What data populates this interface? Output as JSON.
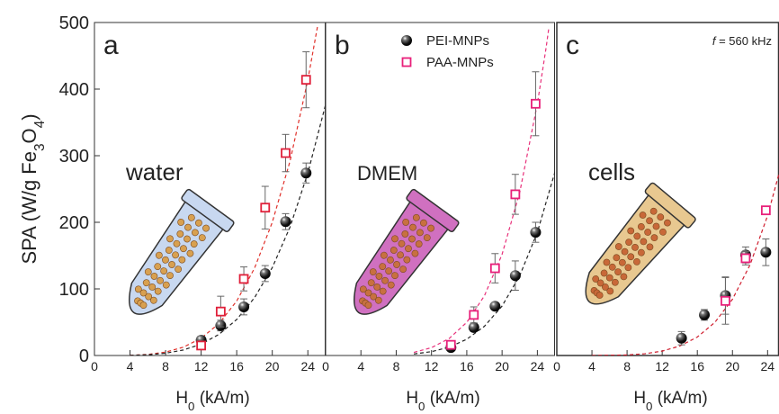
{
  "chart_data": [
    {
      "type": "scatter",
      "panel_label": "a",
      "annotation": "water",
      "ylabel_parts": [
        "SPA (W/g Fe",
        "3",
        "O",
        "4",
        ")"
      ],
      "xlabel_parts": [
        "H",
        "0",
        " (kA/m)"
      ],
      "xlim": [
        0,
        26
      ],
      "ylim": [
        0,
        500
      ],
      "xticks": [
        0,
        4,
        8,
        12,
        16,
        20,
        24
      ],
      "yticks": [
        0,
        100,
        200,
        300,
        400,
        500
      ],
      "series": [
        {
          "marker": "sphere",
          "color": "#111111",
          "x": [
            12,
            14.2,
            16.8,
            19.2,
            21.5,
            23.8
          ],
          "values": [
            23,
            45,
            73,
            123,
            201,
            274
          ],
          "errors": [
            6,
            8,
            12,
            12,
            12,
            15
          ]
        },
        {
          "marker": "square",
          "color": "#e0203a",
          "x": [
            12,
            14.2,
            16.8,
            19.2,
            21.5,
            23.8
          ],
          "values": [
            15,
            66,
            115,
            222,
            304,
            414
          ],
          "errors": [
            5,
            23,
            18,
            32,
            28,
            42
          ]
        }
      ],
      "fits": [
        {
          "color": "#e0302a",
          "x": [
            4,
            6,
            8,
            10,
            12,
            14,
            16,
            18,
            20,
            22,
            24,
            25.1
          ],
          "values": [
            0.32,
            1.6,
            5.1,
            12.5,
            25.9,
            47.9,
            81.8,
            131,
            200,
            292,
            414,
            495
          ]
        },
        {
          "color": "#222222",
          "x": [
            4,
            6,
            8,
            10,
            12,
            14,
            16,
            18,
            20,
            22,
            24,
            26
          ],
          "values": [
            0.21,
            1.07,
            3.4,
            8.3,
            17.1,
            31.7,
            54.1,
            86.7,
            132,
            193,
            274,
            377
          ]
        }
      ]
    },
    {
      "type": "scatter",
      "panel_label": "b",
      "annotation": "DMEM",
      "xlabel_parts": [
        "H",
        "0",
        " (kA/m)"
      ],
      "xlim": [
        0,
        26
      ],
      "ylim": [
        0,
        500
      ],
      "xticks": [
        0,
        4,
        8,
        12,
        16,
        20,
        24
      ],
      "legend": "upper right",
      "series": [
        {
          "name": "PEI-MNPs",
          "marker": "sphere",
          "color": "#111111",
          "x": [
            14.2,
            16.8,
            19.2,
            21.5,
            23.8
          ],
          "values": [
            12,
            42,
            74,
            120,
            185
          ],
          "errors": [
            4,
            6,
            5,
            22,
            15
          ]
        },
        {
          "name": "PAA-MNPs",
          "marker": "square",
          "color": "#e8207a",
          "x": [
            14.2,
            16.8,
            19.2,
            21.5,
            23.8
          ],
          "values": [
            16,
            61,
            131,
            242,
            378
          ],
          "errors": [
            4,
            12,
            22,
            30,
            48
          ]
        }
      ],
      "fits": [
        {
          "color": "#e8307a",
          "x": [
            10,
            12,
            14,
            16,
            18,
            20,
            22,
            24,
            25,
            25.3
          ],
          "values": [
            4.7,
            11.8,
            25.5,
            49.8,
            89.7,
            151.9,
            244.9,
            378,
            463,
            492
          ]
        },
        {
          "color": "#222222",
          "x": [
            10,
            12,
            14,
            16,
            18,
            20,
            22,
            24,
            26
          ],
          "values": [
            2.3,
            5.8,
            12.5,
            24.4,
            43.9,
            74.3,
            119.8,
            185,
            276
          ]
        }
      ]
    },
    {
      "type": "scatter",
      "panel_label": "c",
      "annotation": "cells",
      "note_parts": [
        "f",
        " = 560 kHz"
      ],
      "xlabel_parts": [
        "H",
        "0",
        " (kA/m)"
      ],
      "xlim": [
        0,
        25.3
      ],
      "ylim": [
        0,
        500
      ],
      "xticks": [
        0,
        4,
        8,
        12,
        16,
        20,
        24
      ],
      "series": [
        {
          "marker": "sphere",
          "color": "#111111",
          "x": [
            14.2,
            16.8,
            19.2,
            21.5,
            23.8
          ],
          "values": [
            26,
            61,
            90,
            151,
            155
          ],
          "errors": [
            10,
            8,
            28,
            12,
            20
          ]
        },
        {
          "marker": "square",
          "color": "#e8207a",
          "x": [
            19.2,
            21.5,
            23.8
          ],
          "values": [
            82,
            146,
            218
          ],
          "errors": [
            35,
            10,
            5
          ]
        }
      ],
      "fits": [
        {
          "color": "#d02030",
          "x": [
            4,
            8,
            10,
            12,
            14,
            16,
            18,
            20,
            22,
            24,
            25.3
          ],
          "values": [
            0.03,
            0.86,
            2.6,
            6.6,
            14.2,
            27.7,
            49.8,
            84.4,
            136,
            210,
            273
          ]
        }
      ]
    }
  ]
}
